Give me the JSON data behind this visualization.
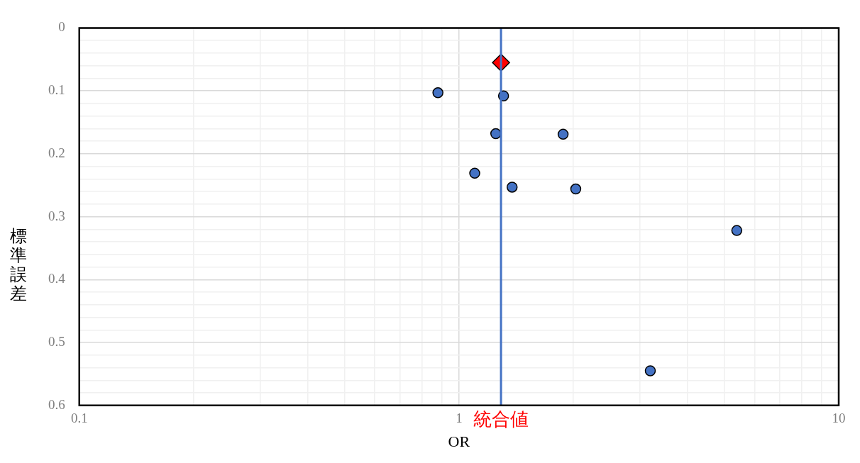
{
  "chart_data": {
    "type": "scatter",
    "xlabel": "OR",
    "ylabel": "標準誤差",
    "log": "x",
    "grid": true,
    "legend": false,
    "xlim": [
      0.1,
      10
    ],
    "xticks": [
      0.1,
      {
        "value": 0.2,
        "label": null
      },
      {
        "value": 0.3,
        "label": null
      },
      {
        "value": 0.4,
        "label": null
      },
      {
        "value": 0.5,
        "label": null
      },
      {
        "value": 0.6,
        "label": null
      },
      {
        "value": 0.7,
        "label": null
      },
      {
        "value": 0.8,
        "label": null
      },
      {
        "value": 0.9,
        "label": null
      },
      1,
      {
        "value": 2,
        "label": null
      },
      {
        "value": 3,
        "label": null
      },
      {
        "value": 4,
        "label": null
      },
      {
        "value": 5,
        "label": null
      },
      {
        "value": 6,
        "label": null
      },
      {
        "value": 7,
        "label": null
      },
      {
        "value": 8,
        "label": null
      },
      {
        "value": 9,
        "label": null
      },
      10
    ],
    "ylim": [
      0.6,
      0
    ],
    "yticks": [
      0,
      {
        "value": 0.02,
        "label": null
      },
      {
        "value": 0.04,
        "label": null
      },
      {
        "value": 0.06,
        "label": null
      },
      {
        "value": 0.08,
        "label": null
      },
      0.1,
      {
        "value": 0.12,
        "label": null
      },
      {
        "value": 0.14,
        "label": null
      },
      {
        "value": 0.16,
        "label": null
      },
      {
        "value": 0.18,
        "label": null
      },
      0.2,
      {
        "value": 0.22,
        "label": null
      },
      {
        "value": 0.24,
        "label": null
      },
      {
        "value": 0.26,
        "label": null
      },
      {
        "value": 0.28,
        "label": null
      },
      0.3,
      {
        "value": 0.32,
        "label": null
      },
      {
        "value": 0.34,
        "label": null
      },
      {
        "value": 0.36,
        "label": null
      },
      {
        "value": 0.38,
        "label": null
      },
      0.4,
      {
        "value": 0.42,
        "label": null
      },
      {
        "value": 0.44,
        "label": null
      },
      {
        "value": 0.46,
        "label": null
      },
      {
        "value": 0.48,
        "label": null
      },
      0.5,
      {
        "value": 0.52,
        "label": null
      },
      {
        "value": 0.54,
        "label": null
      },
      {
        "value": 0.56,
        "label": null
      },
      {
        "value": 0.58,
        "label": null
      },
      0.6
    ],
    "series": [
      {
        "color": "#4472c4",
        "marker": "circle",
        "x": [
          0.88,
          1.31,
          1.25,
          1.88,
          1.1,
          1.38,
          2.03,
          5.39,
          3.19
        ],
        "values": [
          0.103,
          0.108,
          0.168,
          0.169,
          0.231,
          0.253,
          0.256,
          0.322,
          0.545
        ]
      },
      {
        "color": "#ff0000",
        "marker": "diamond",
        "x": [
          1.29
        ],
        "values": [
          0.055
        ]
      }
    ],
    "ref_lines": [
      {
        "axis": "x",
        "value": 1.29,
        "label": "統合値",
        "color": "#4472c4"
      }
    ]
  }
}
